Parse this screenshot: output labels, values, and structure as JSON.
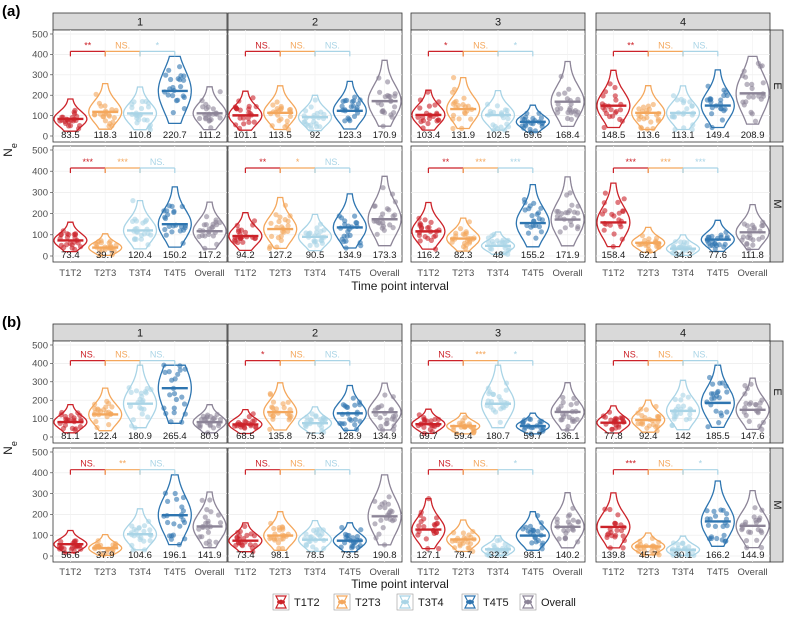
{
  "chart_data": {
    "type": "violin",
    "y_axis_label": "N",
    "y_axis_label_subscript": "e",
    "x_axis_label": "Time point interval",
    "ylim": [
      0,
      500
    ],
    "y_ticks": [
      0,
      100,
      200,
      300,
      400,
      500
    ],
    "categories": [
      "T1T2",
      "T2T3",
      "T3T4",
      "T4T5",
      "Overall"
    ],
    "legend": [
      "T1T2",
      "T2T3",
      "T3T4",
      "T4T5",
      "Overall"
    ],
    "colors": {
      "T1T2": "#cc2229",
      "T2T3": "#f4a75c",
      "T3T4": "#a9d4e6",
      "T4T5": "#2e75b0",
      "Overall": "#8c8497"
    },
    "plots": [
      {
        "label": "(a)",
        "columns": [
          "1",
          "2",
          "3",
          "4"
        ],
        "rows": [
          "E",
          "M"
        ],
        "panels": [
          [
            {
              "medians": [
                83.5,
                118.3,
                110.8,
                220.7,
                111.2
              ],
              "sig": [
                "**",
                "NS.",
                "*"
              ]
            },
            {
              "medians": [
                101.1,
                113.5,
                92,
                123.3,
                170.9
              ],
              "sig": [
                "NS.",
                "NS.",
                "NS."
              ]
            },
            {
              "medians": [
                103.4,
                131.9,
                102.5,
                69.6,
                168.4
              ],
              "sig": [
                "*",
                "NS.",
                "*"
              ]
            },
            {
              "medians": [
                148.5,
                113.6,
                113.1,
                149.4,
                208.9
              ],
              "sig": [
                "**",
                "NS.",
                "NS."
              ]
            }
          ],
          [
            {
              "medians": [
                73.4,
                39.7,
                120.4,
                150.2,
                117.2
              ],
              "sig": [
                "***",
                "***",
                "NS."
              ]
            },
            {
              "medians": [
                94.2,
                127.2,
                90.5,
                134.9,
                173.3
              ],
              "sig": [
                "**",
                "*",
                "NS."
              ]
            },
            {
              "medians": [
                116.2,
                82.3,
                48,
                155.2,
                171.9
              ],
              "sig": [
                "**",
                "***",
                "***"
              ]
            },
            {
              "medians": [
                158.4,
                62.1,
                34.3,
                77.6,
                111.8
              ],
              "sig": [
                "***",
                "***",
                "***"
              ]
            }
          ]
        ]
      },
      {
        "label": "(b)",
        "columns": [
          "1",
          "2",
          "3",
          "4"
        ],
        "rows": [
          "E",
          "M"
        ],
        "panels": [
          [
            {
              "medians": [
                81.1,
                122.4,
                180.9,
                265.4,
                80.9
              ],
              "sig": [
                "NS.",
                "NS.",
                "NS."
              ]
            },
            {
              "medians": [
                68.5,
                135.8,
                75.3,
                128.9,
                134.9
              ],
              "sig": [
                "*",
                "NS.",
                "NS."
              ]
            },
            {
              "medians": [
                69.7,
                59.4,
                180.7,
                59.7,
                136.1
              ],
              "sig": [
                "NS.",
                "***",
                "*"
              ]
            },
            {
              "medians": [
                77.8,
                92.4,
                142,
                185.5,
                147.6
              ],
              "sig": [
                "NS.",
                "NS.",
                "NS."
              ]
            }
          ],
          [
            {
              "medians": [
                56.6,
                37.9,
                104.6,
                196.1,
                141.9
              ],
              "sig": [
                "NS.",
                "**",
                "NS."
              ]
            },
            {
              "medians": [
                73.4,
                98.1,
                78.5,
                73.5,
                190.8
              ],
              "sig": [
                "NS.",
                "NS.",
                "NS."
              ]
            },
            {
              "medians": [
                127.1,
                79.7,
                32.2,
                98.1,
                140.2
              ],
              "sig": [
                "NS.",
                "NS.",
                "*"
              ]
            },
            {
              "medians": [
                139.8,
                45.7,
                30.1,
                166.2,
                144.9
              ],
              "sig": [
                "***",
                "NS.",
                "*"
              ]
            }
          ]
        ]
      }
    ]
  }
}
